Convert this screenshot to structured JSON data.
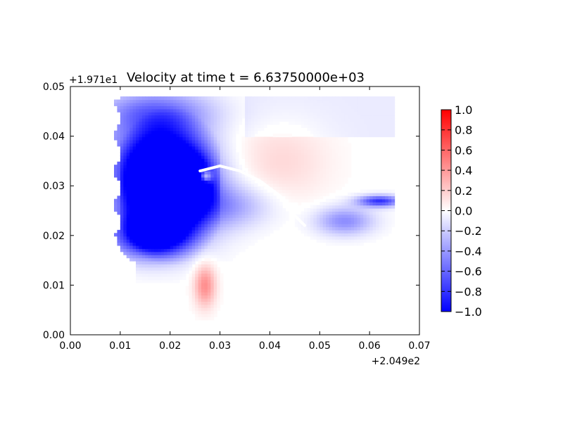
{
  "chart_data": {
    "type": "heatmap",
    "title": "Velocity at time t = 6.63750000e+03",
    "xlabel": "",
    "ylabel": "",
    "x_offset_label": "+2.049e2",
    "y_offset_label": "+1.971e1",
    "xlim": [
      0.0,
      0.07
    ],
    "ylim": [
      0.0,
      0.05
    ],
    "x_ticks": [
      "0.00",
      "0.01",
      "0.02",
      "0.03",
      "0.04",
      "0.05",
      "0.06",
      "0.07"
    ],
    "y_ticks": [
      "0.00",
      "0.01",
      "0.02",
      "0.03",
      "0.04",
      "0.05"
    ],
    "colorbar": {
      "min": -1.0,
      "max": 1.0,
      "colormap": "bwr",
      "ticks": [
        "1.0",
        "0.8",
        "0.6",
        "0.4",
        "0.2",
        "0.0",
        "−0.2",
        "−0.4",
        "−0.6",
        "−0.8",
        "−1.0"
      ]
    },
    "field_features": [
      {
        "kind": "strong-negative",
        "x": 0.019,
        "y": 0.028,
        "value": -1.0,
        "sx": 0.007,
        "sy": 0.006
      },
      {
        "kind": "strong-negative",
        "x": 0.016,
        "y": 0.02,
        "value": -1.0,
        "sx": 0.005,
        "sy": 0.003
      },
      {
        "kind": "strong-negative",
        "x": 0.023,
        "y": 0.031,
        "value": -1.0,
        "sx": 0.003,
        "sy": 0.003
      },
      {
        "kind": "negative-lobe",
        "x": 0.017,
        "y": 0.036,
        "value": -0.7,
        "sx": 0.007,
        "sy": 0.006
      },
      {
        "kind": "negative-inflow",
        "x": 0.017,
        "y": 0.045,
        "value": -0.45,
        "sx": 0.008,
        "sy": 0.003
      },
      {
        "kind": "negative-bay",
        "x": 0.032,
        "y": 0.026,
        "value": -0.3,
        "sx": 0.006,
        "sy": 0.003
      },
      {
        "kind": "positive-lobe",
        "x": 0.042,
        "y": 0.035,
        "value": 0.15,
        "sx": 0.007,
        "sy": 0.006
      },
      {
        "kind": "positive-spot",
        "x": 0.027,
        "y": 0.032,
        "value": 1.0,
        "sx": 0.0009,
        "sy": 0.0009
      },
      {
        "kind": "positive-plume",
        "x": 0.027,
        "y": 0.01,
        "value": 0.45,
        "sx": 0.0015,
        "sy": 0.003
      },
      {
        "kind": "negative-channel",
        "x": 0.062,
        "y": 0.027,
        "value": -0.8,
        "sx": 0.003,
        "sy": 0.0008
      },
      {
        "kind": "negative-channel",
        "x": 0.055,
        "y": 0.023,
        "value": -0.45,
        "sx": 0.004,
        "sy": 0.002
      }
    ],
    "grid": false,
    "legend": "colorbar-right"
  }
}
